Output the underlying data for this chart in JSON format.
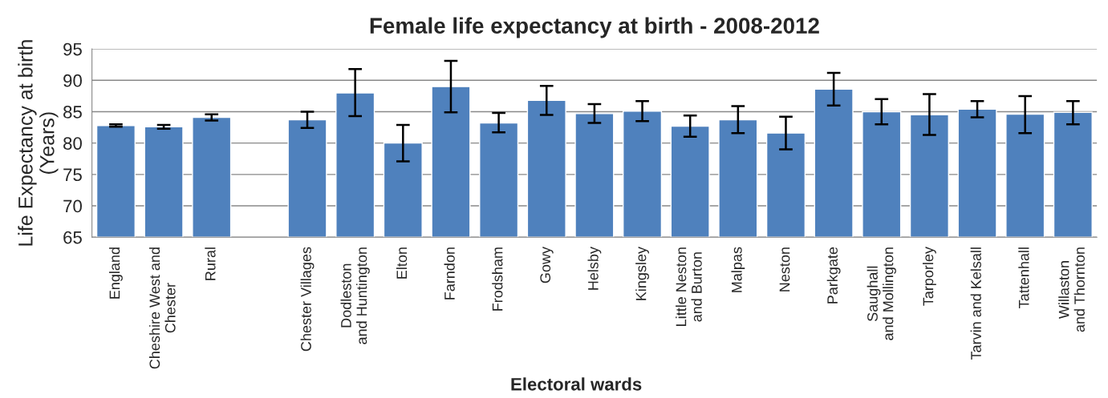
{
  "chart_data": {
    "type": "bar",
    "title": "Female life expectancy at birth - 2008-2012",
    "xlabel": "Electoral wards",
    "ylabel": "Life Expectancy at birth\n(Years)",
    "categories": [
      "England",
      "Cheshire West and\nChester",
      "Rural",
      null,
      "Chester Villages",
      "Dodleston\nand Huntington",
      "Elton",
      "Farndon",
      "Frodsham",
      "Gowy",
      "Helsby",
      "Kingsley",
      "Little Neston\nand Burton",
      "Malpas",
      "Neston",
      "Parkgate",
      "Saughall\nand Mollington",
      "Tarporley",
      "Tarvin and Kelsall",
      "Tattenhall",
      "Willaston\nand Thornton"
    ],
    "values": [
      82.8,
      82.6,
      84.1,
      null,
      83.7,
      88.0,
      80.0,
      89.0,
      83.2,
      86.8,
      84.7,
      85.1,
      82.7,
      83.7,
      81.6,
      88.6,
      85.0,
      84.5,
      85.4,
      84.6,
      84.9
    ],
    "errors": [
      [
        82.6,
        83.0
      ],
      [
        82.3,
        82.9
      ],
      [
        83.6,
        84.6
      ],
      null,
      [
        82.4,
        85.0
      ],
      [
        84.3,
        91.8
      ],
      [
        77.1,
        82.9
      ],
      [
        84.9,
        93.1
      ],
      [
        81.7,
        84.8
      ],
      [
        84.5,
        89.1
      ],
      [
        83.2,
        86.2
      ],
      [
        83.5,
        86.7
      ],
      [
        81.0,
        84.4
      ],
      [
        81.6,
        85.9
      ],
      [
        79.0,
        84.2
      ],
      [
        86.0,
        91.2
      ],
      [
        83.0,
        87.0
      ],
      [
        81.3,
        87.8
      ],
      [
        84.1,
        86.7
      ],
      [
        81.6,
        87.5
      ],
      [
        83.0,
        86.7
      ]
    ],
    "color": "#4f81bd",
    "ylim": [
      65,
      95
    ],
    "yticks": [
      65,
      70,
      75,
      80,
      85,
      90,
      95
    ],
    "grid": "y",
    "legend": false
  }
}
